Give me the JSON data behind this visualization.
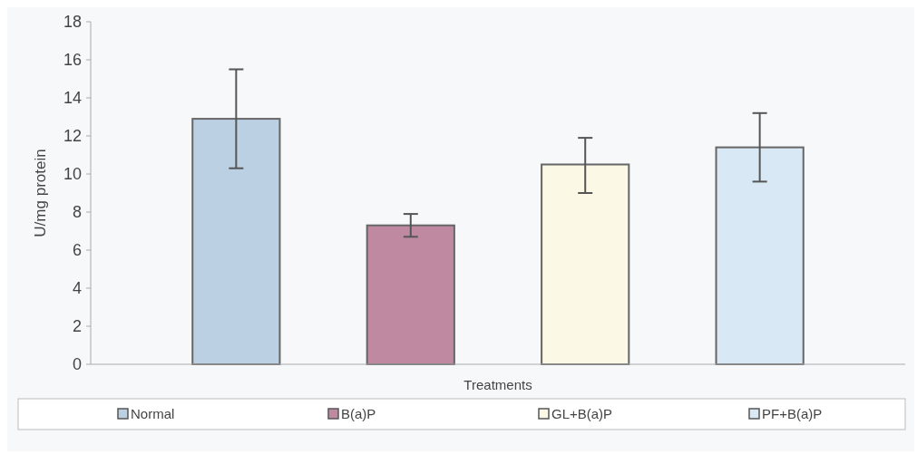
{
  "chart_data": {
    "type": "bar",
    "xlabel": "Treatments",
    "ylabel": "U/mg protein",
    "categories": [
      null
    ],
    "series": [
      {
        "name": "Normal",
        "color": "#bcd0e3",
        "values": [
          12.9
        ],
        "errors": [
          [
            10.3,
            15.5
          ]
        ]
      },
      {
        "name": "B(a)P",
        "color": "#bf8aa1",
        "values": [
          7.3
        ],
        "errors": [
          [
            6.7,
            7.9
          ]
        ]
      },
      {
        "name": "GL+B(a)P",
        "color": "#fbf8e6",
        "values": [
          10.5
        ],
        "errors": [
          [
            9.0,
            11.9
          ]
        ]
      },
      {
        "name": "PF+B(a)P",
        "color": "#d8e9f5",
        "values": [
          11.4
        ],
        "errors": [
          [
            9.6,
            13.2
          ]
        ]
      }
    ],
    "ylim": [
      0,
      18
    ],
    "yticks": [
      0,
      2,
      4,
      6,
      8,
      10,
      12,
      14,
      16,
      18
    ],
    "legend": "bottom"
  }
}
